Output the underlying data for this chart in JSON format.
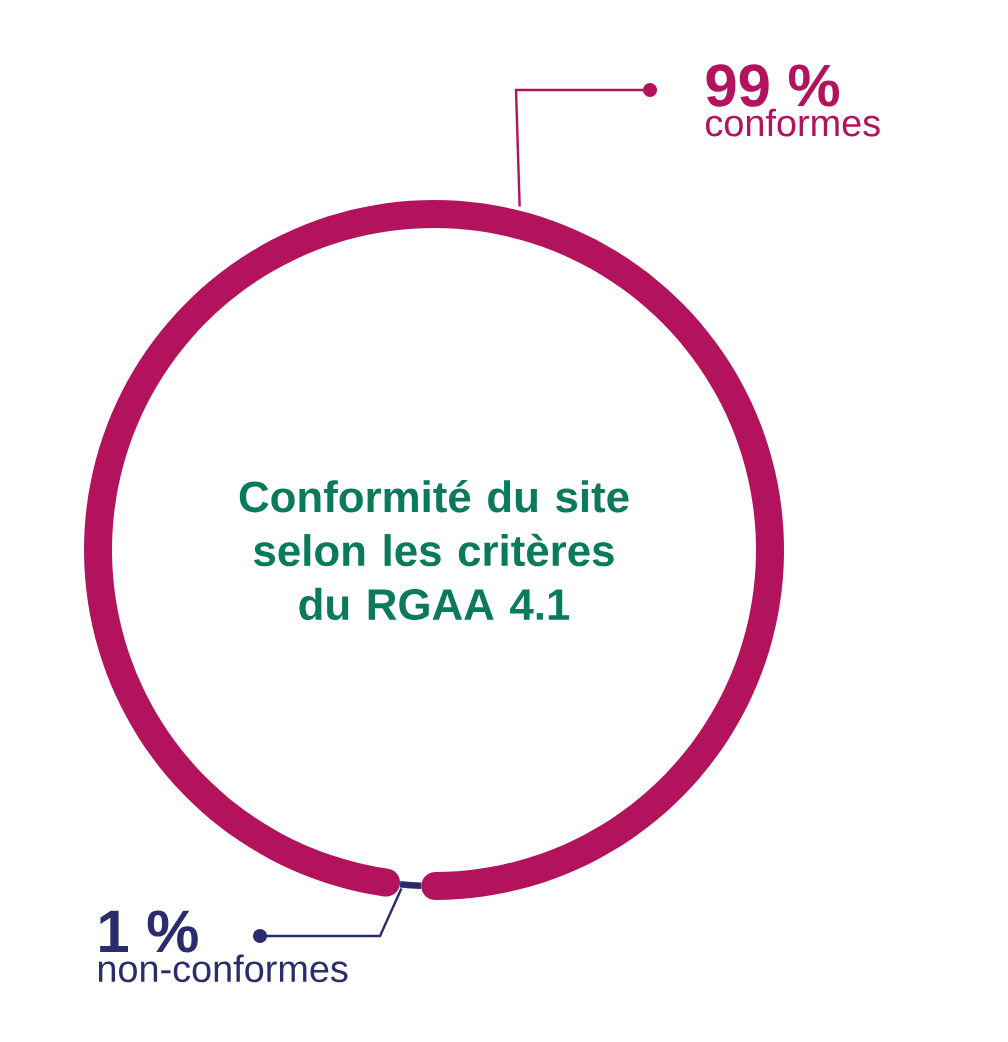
{
  "chart_data": {
    "type": "donut",
    "title": "Conformité du site selon les critères du RGAA 4.1",
    "categories": [
      "conformes",
      "non-conformes"
    ],
    "values": [
      99,
      1
    ],
    "colors": [
      "#b3125c",
      "#2b2c6e"
    ],
    "value_labels": [
      "99 %",
      "1 %"
    ]
  }
}
